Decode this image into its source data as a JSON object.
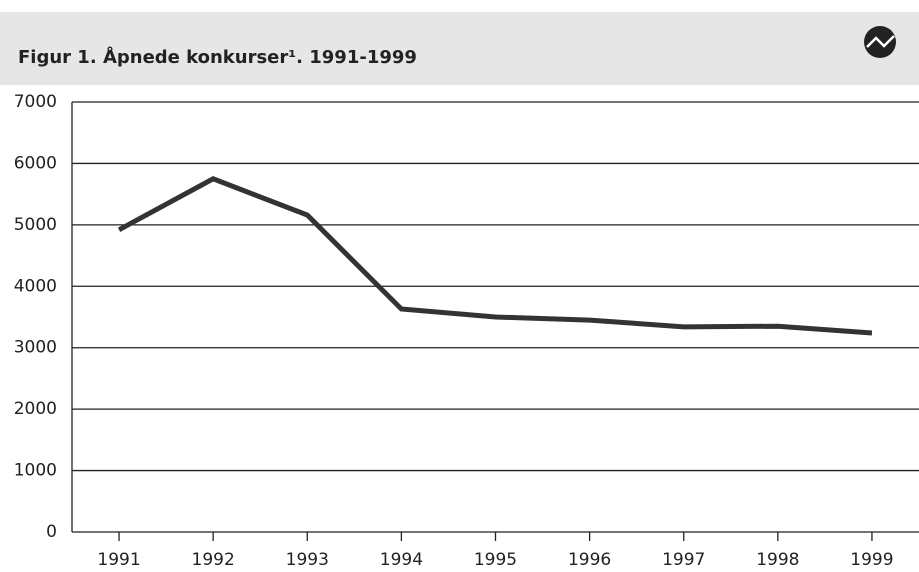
{
  "chart_data": {
    "type": "line",
    "title": "Figur 1.  Åpnede konkurser¹. 1991-1999",
    "categories": [
      "1991",
      "1992",
      "1993",
      "1994",
      "1995",
      "1996",
      "1997",
      "1998",
      "1999"
    ],
    "values": [
      4920,
      5750,
      5160,
      3630,
      3500,
      3450,
      3340,
      3350,
      3240
    ],
    "color": "#333333",
    "ylim": [
      0,
      7000
    ],
    "yticks": [
      0,
      1000,
      2000,
      3000,
      4000,
      5000,
      6000,
      7000
    ],
    "grid": true
  }
}
